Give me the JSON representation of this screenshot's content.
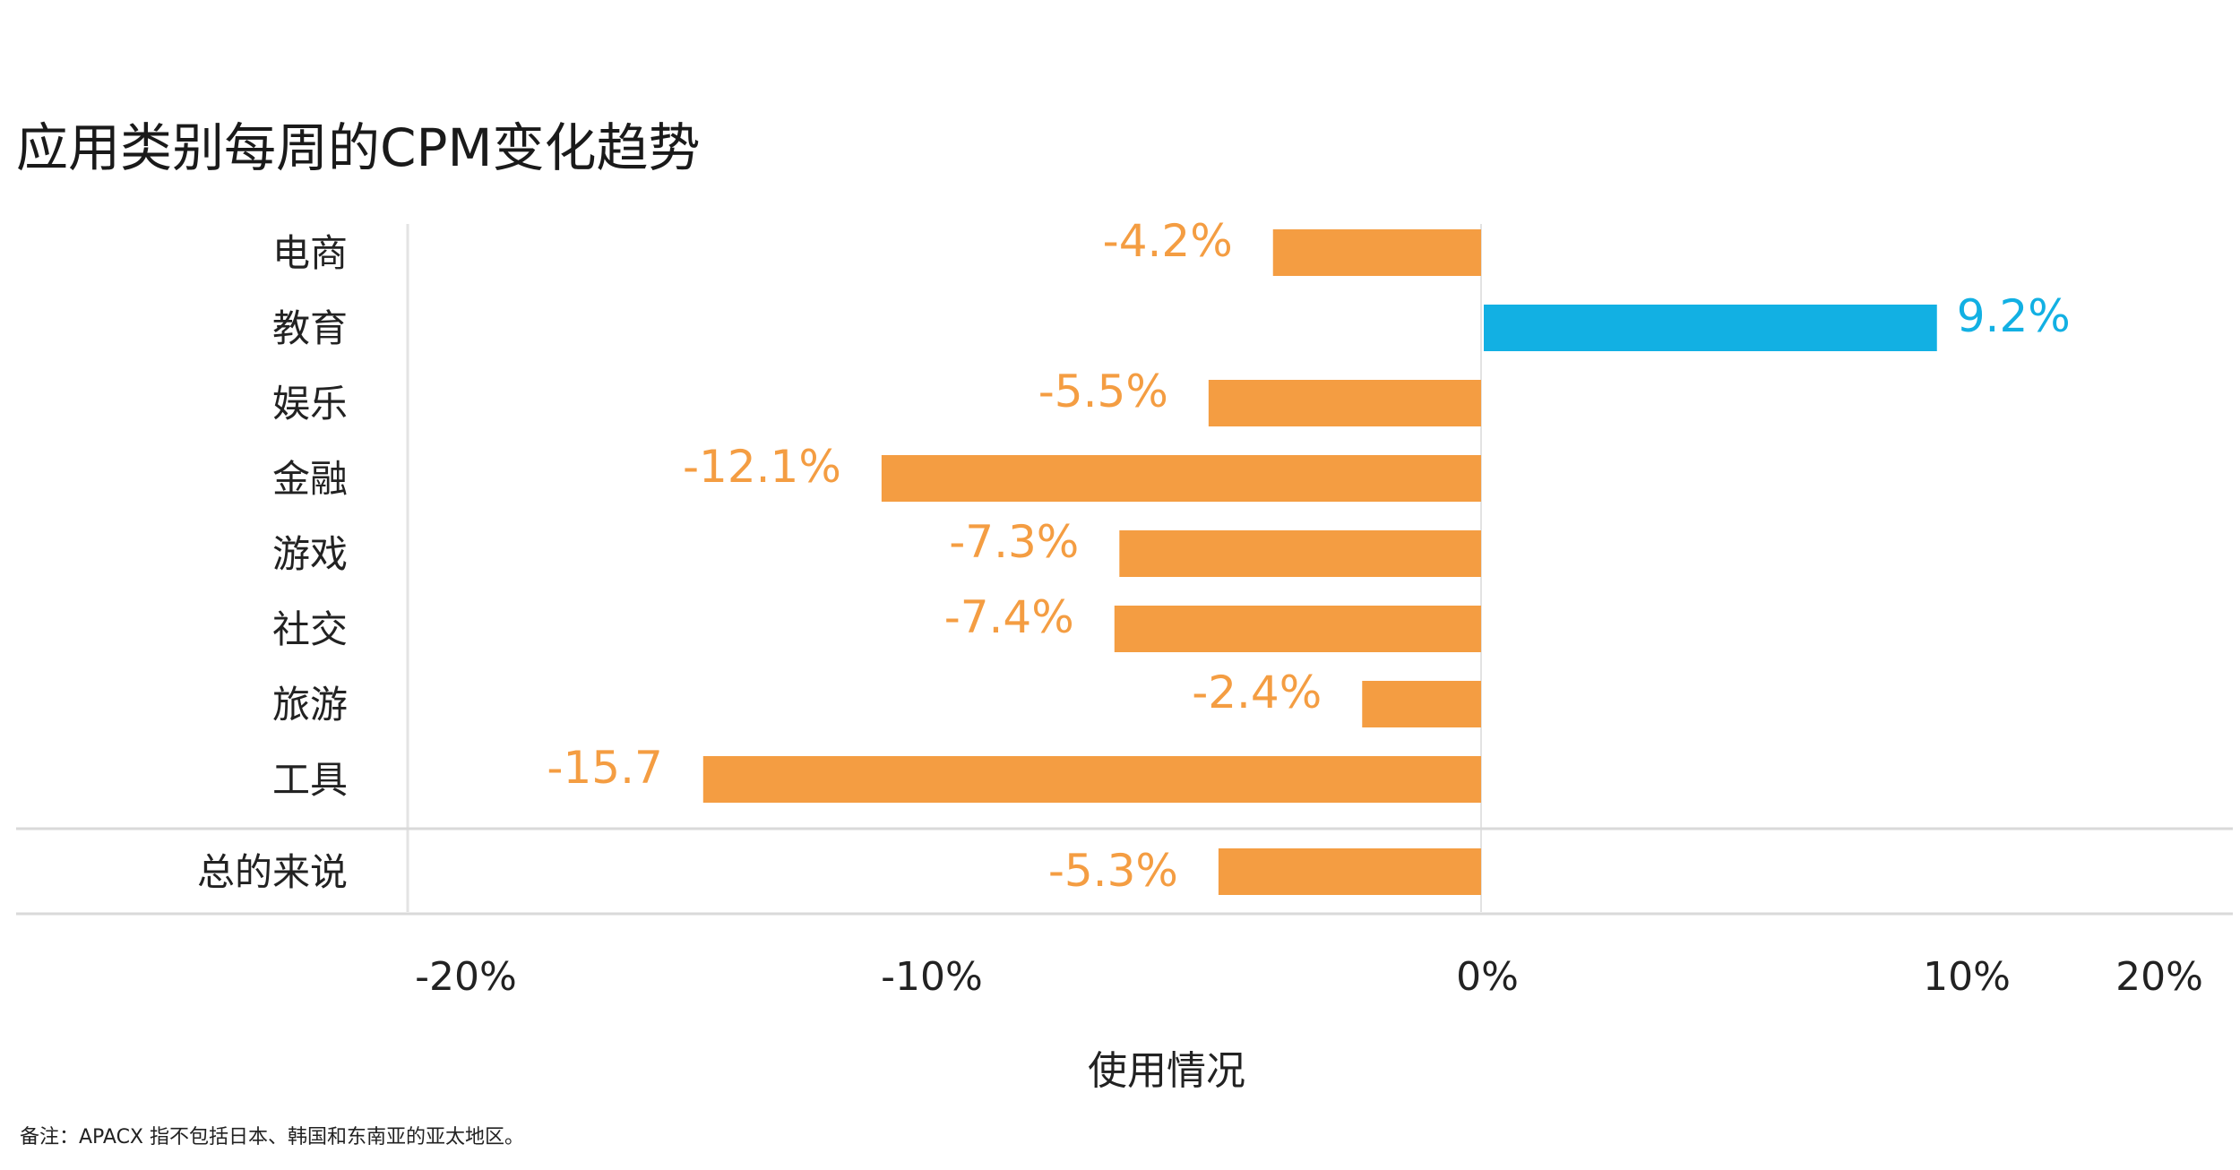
{
  "colors": {
    "negative": "#F49D42",
    "positive": "#12B0E3",
    "gridline": "#E3E3E3",
    "divider": "#D9D9D9"
  },
  "chart_data": {
    "type": "bar",
    "orientation": "horizontal",
    "title": "应用类别每周的CPM变化趋势",
    "xlabel": "使用情况",
    "ylabel": "",
    "xlim": [
      -20,
      20
    ],
    "x_ticks": [
      "-20%",
      "-10%",
      "0%",
      "10%",
      "20%"
    ],
    "categories": [
      "电商",
      "教育",
      "娱乐",
      "金融",
      "游戏",
      "社交",
      "旅游",
      "工具"
    ],
    "values": [
      -4.2,
      9.2,
      -5.5,
      -12.1,
      -7.3,
      -7.4,
      -2.4,
      -15.7
    ],
    "value_labels": [
      "-4.2%",
      "9.2%",
      "-5.5%",
      "-12.1%",
      "-7.3%",
      "-7.4%",
      "-2.4%",
      "-15.7"
    ],
    "total": {
      "category": "总的来说",
      "value": -5.3,
      "label": "-5.3%"
    },
    "grid": false,
    "legend": "none"
  },
  "footnote": "备注：APACX 指不包括日本、韩国和东南亚的亚太地区。"
}
